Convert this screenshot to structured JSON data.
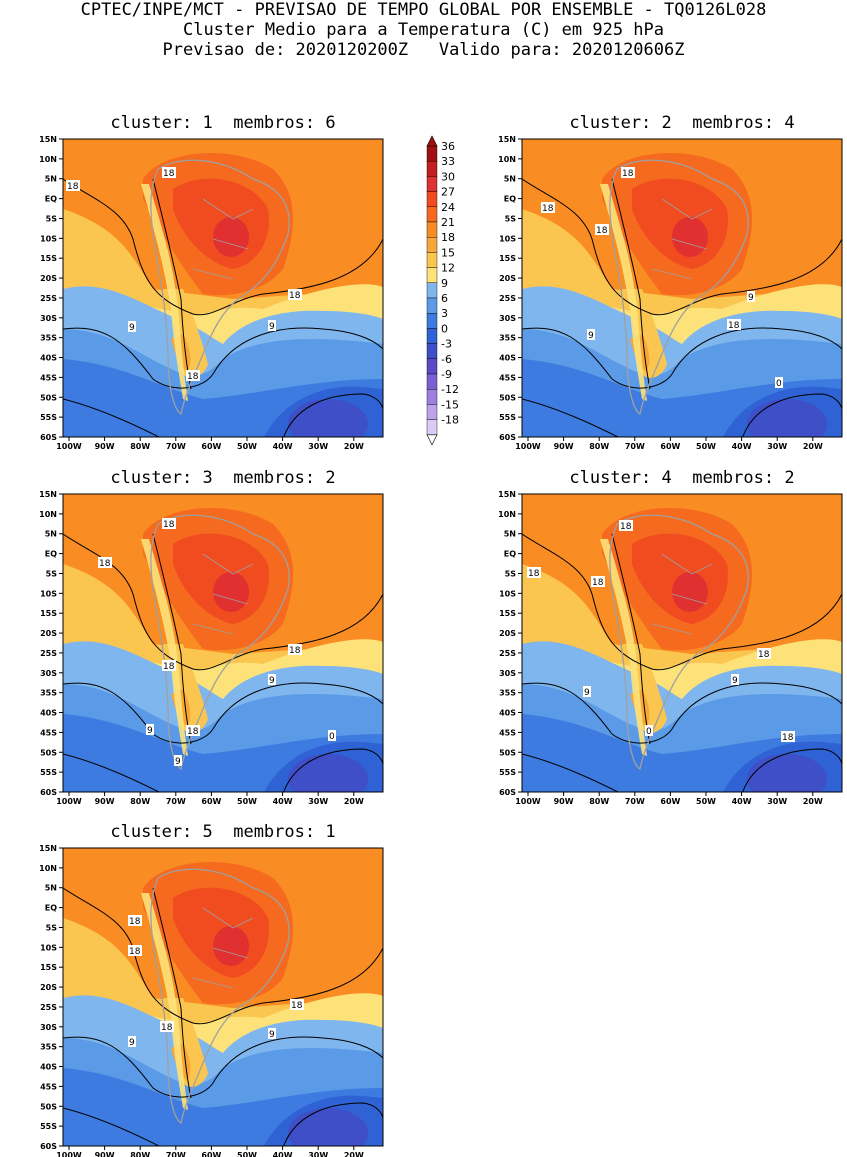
{
  "header": {
    "line1": "CPTEC/INPE/MCT - PREVISAO DE TEMPO GLOBAL POR ENSEMBLE - TQ0126L028",
    "line2": "Cluster Medio para a Temperatura (C) em 925 hPa",
    "line3": "Previsao de: 2020120200Z   Valido para: 2020120606Z"
  },
  "panels": [
    {
      "title": "cluster: 1  membros: 6",
      "labels": [
        "18",
        "18",
        "18",
        "9",
        "9",
        "18"
      ]
    },
    {
      "title": "cluster: 2  membros: 4",
      "labels": [
        "18",
        "18",
        "18",
        "9",
        "9",
        "18",
        "0"
      ]
    },
    {
      "title": "cluster: 3  membros: 2",
      "labels": [
        "18",
        "18",
        "18",
        "18",
        "9",
        "9",
        "18",
        "0",
        "9"
      ]
    },
    {
      "title": "cluster: 4  membros: 2",
      "labels": [
        "18",
        "18",
        "18",
        "18",
        "9",
        "9",
        "18",
        "0"
      ]
    },
    {
      "title": "cluster: 5  membros: 1",
      "labels": [
        "18",
        "18",
        "18",
        "18",
        "9",
        "9"
      ]
    }
  ],
  "axes": {
    "lat_ticks": [
      "15N",
      "10N",
      "5N",
      "EQ",
      "5S",
      "10S",
      "15S",
      "20S",
      "25S",
      "30S",
      "35S",
      "40S",
      "45S",
      "50S",
      "55S",
      "60S"
    ],
    "lon_ticks": [
      "100W",
      "90W",
      "80W",
      "70W",
      "60W",
      "50W",
      "40W",
      "30W",
      "20W"
    ]
  },
  "colorbar": {
    "values": [
      "36",
      "33",
      "30",
      "27",
      "24",
      "21",
      "18",
      "15",
      "12",
      "9",
      "6",
      "3",
      "0",
      "-3",
      "-6",
      "-9",
      "-12",
      "-15",
      "-18"
    ],
    "colors": [
      "#a01010",
      "#c02020",
      "#e03030",
      "#f04c20",
      "#f56a1e",
      "#f98c22",
      "#f7a737",
      "#fbc64f",
      "#fde27a",
      "#7fb6ee",
      "#5b9ae6",
      "#3d7be0",
      "#2f62d4",
      "#3f4fc8",
      "#5b4ac4",
      "#7b5fd2",
      "#9d7fe0",
      "#bca3ec",
      "#dccaf6"
    ]
  }
}
